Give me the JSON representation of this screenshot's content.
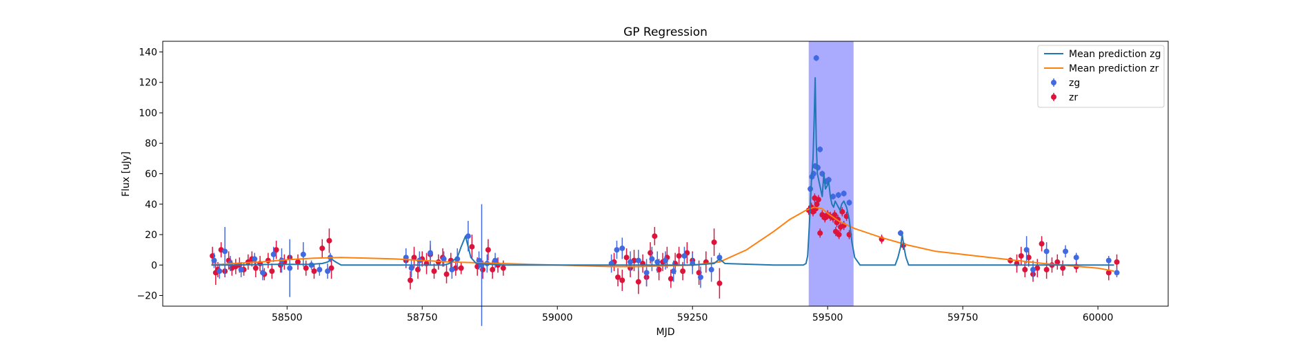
{
  "chart_data": {
    "type": "scatter",
    "title": "GP Regression",
    "xlabel": "MJD",
    "ylabel": "Flux [uJy]",
    "xlim": [
      58270,
      60130
    ],
    "ylim": [
      -27,
      147
    ],
    "xticks": [
      58500,
      58750,
      59000,
      59250,
      59500,
      59750,
      60000
    ],
    "yticks": [
      -20,
      0,
      20,
      40,
      60,
      80,
      100,
      120,
      140
    ],
    "grid": false,
    "legend_position": "top-right",
    "highlight_region": {
      "x0": 59465,
      "x1": 59548,
      "color": "#aaaaff"
    },
    "colors": {
      "zg_line": "#1f77b4",
      "zr_line": "#ff7f0e",
      "zg_points": "#4169e1",
      "zr_points": "#dc143c",
      "band": "#aaaaff"
    },
    "legend": [
      "Mean prediction zg",
      "Mean prediction zr",
      "zg",
      "zr"
    ],
    "series": [
      {
        "name": "Mean prediction zg",
        "kind": "line",
        "x": [
          58360,
          58400,
          58480,
          58500,
          58540,
          58565,
          58575,
          58582,
          58590,
          58600,
          58650,
          58700,
          58750,
          58790,
          58800,
          58815,
          58822,
          58830,
          58835,
          58840,
          58850,
          58900,
          59000,
          59100,
          59250,
          59290,
          59300,
          59310,
          59400,
          59450,
          59455,
          59460,
          59463,
          59466,
          59468,
          59470,
          59473,
          59475,
          59477,
          59479,
          59481,
          59484,
          59487,
          59490,
          59493,
          59496,
          59499,
          59502,
          59505,
          59508,
          59511,
          59514,
          59517,
          59520,
          59523,
          59526,
          59530,
          59535,
          59540,
          59545,
          59550,
          59560,
          59600,
          59625,
          59630,
          59635,
          59638,
          59641,
          59645,
          59650,
          59700,
          59800,
          59900,
          60000,
          60030
        ],
        "y": [
          0,
          0,
          0.5,
          0.5,
          0.5,
          1,
          2,
          4,
          2,
          0,
          0,
          0,
          0,
          0,
          1,
          5,
          12,
          19,
          12,
          5,
          1,
          0,
          0,
          0,
          0,
          1,
          4,
          1,
          0,
          0,
          0,
          1,
          6,
          25,
          40,
          55,
          70,
          95,
          123,
          80,
          60,
          55,
          50,
          45,
          60,
          50,
          52,
          55,
          45,
          40,
          38,
          42,
          40,
          38,
          36,
          40,
          42,
          38,
          30,
          15,
          5,
          0,
          0,
          0,
          5,
          12,
          20,
          12,
          5,
          0,
          0,
          0,
          0,
          0,
          0
        ]
      },
      {
        "name": "Mean prediction zr",
        "kind": "line",
        "x": [
          58360,
          58400,
          58450,
          58500,
          58550,
          58600,
          58650,
          58700,
          58750,
          58800,
          58850,
          58900,
          58950,
          59000,
          59050,
          59100,
          59150,
          59200,
          59250,
          59300,
          59350,
          59400,
          59430,
          59460,
          59475,
          59490,
          59500,
          59520,
          59550,
          59600,
          59650,
          59700,
          59750,
          59800,
          59850,
          59900,
          59950,
          60000,
          60030
        ],
        "y": [
          0,
          1,
          2,
          3.5,
          4.5,
          5,
          4.5,
          4,
          3,
          2,
          1.5,
          1,
          0.5,
          0,
          -0.5,
          -1,
          -1,
          -0.5,
          0,
          2,
          10,
          22,
          30,
          36,
          38,
          37,
          34,
          29,
          24,
          18,
          13,
          9,
          7,
          5,
          3,
          1,
          -0.5,
          -2,
          -4
        ]
      },
      {
        "name": "zg",
        "kind": "points",
        "x": [
          58365,
          58375,
          58385,
          58395,
          58415,
          58440,
          58455,
          58475,
          58490,
          58505,
          58530,
          58545,
          58560,
          58575,
          58580,
          58720,
          58730,
          58745,
          58765,
          58790,
          58805,
          58815,
          58835,
          58855,
          58860,
          58870,
          58885,
          59100,
          59110,
          59120,
          59135,
          59150,
          59165,
          59175,
          59185,
          59200,
          59215,
          59235,
          59250,
          59265,
          59285,
          59300,
          59468,
          59471,
          59474,
          59477,
          59479,
          59482,
          59486,
          59490,
          59497,
          59502,
          59510,
          59520,
          59530,
          59540,
          59635,
          59868,
          59880,
          59905,
          59940,
          59960,
          60020,
          60035
        ],
        "y": [
          3,
          -4,
          9,
          1,
          -3,
          4,
          -5,
          7,
          3,
          -2,
          7,
          0,
          -3,
          -4,
          5,
          5,
          -2,
          3,
          8,
          4,
          -3,
          4,
          19,
          3,
          0,
          1,
          3,
          1,
          10,
          11,
          2,
          3,
          -5,
          4,
          2,
          3,
          -4,
          6,
          1,
          -8,
          -3,
          5,
          50,
          58,
          60,
          65,
          136,
          64,
          76,
          60,
          55,
          56,
          45,
          46,
          47,
          41,
          21,
          10,
          -3,
          9,
          9,
          5,
          3,
          -5
        ],
        "err": [
          5,
          5,
          16,
          5,
          5,
          4,
          5,
          5,
          8,
          19,
          8,
          3,
          4,
          5,
          3,
          6,
          6,
          6,
          8,
          5,
          6,
          7,
          10,
          6,
          40,
          6,
          5,
          6,
          6,
          7,
          7,
          7,
          9,
          8,
          7,
          6,
          7,
          6,
          7,
          7,
          8,
          3,
          2,
          2,
          2,
          2,
          2,
          2,
          2,
          2,
          2,
          2,
          2,
          2,
          2,
          2,
          2,
          9,
          6,
          6,
          4,
          3,
          3,
          3
        ]
      },
      {
        "name": "zr",
        "kind": "points",
        "x": [
          58362,
          58368,
          58372,
          58378,
          58385,
          58392,
          58398,
          58405,
          58412,
          58420,
          58428,
          58435,
          58442,
          58450,
          58458,
          58465,
          58472,
          58480,
          58488,
          58495,
          58505,
          58520,
          58535,
          58550,
          58565,
          58578,
          58582,
          58720,
          58728,
          58735,
          58742,
          58750,
          58758,
          58765,
          58772,
          58780,
          58788,
          58795,
          58803,
          58812,
          58822,
          58842,
          58852,
          58862,
          58872,
          58880,
          58890,
          58900,
          59105,
          59112,
          59120,
          59128,
          59135,
          59142,
          59150,
          59158,
          59165,
          59172,
          59180,
          59188,
          59195,
          59203,
          59210,
          59218,
          59225,
          59232,
          59240,
          59250,
          59262,
          59275,
          59290,
          59300,
          59465,
          59470,
          59473,
          59476,
          59478,
          59480,
          59483,
          59486,
          59490,
          59495,
          59500,
          59505,
          59510,
          59513,
          59515,
          59517,
          59519,
          59521,
          59524,
          59527,
          59530,
          59535,
          59540,
          59600,
          59640,
          59838,
          59850,
          59858,
          59865,
          59872,
          59880,
          59888,
          59896,
          59905,
          59915,
          59925,
          59935,
          59960,
          60020,
          60035
        ],
        "y": [
          6,
          -5,
          -3,
          10,
          -4,
          3,
          -2,
          -1,
          0,
          -3,
          2,
          4,
          -2,
          1,
          -6,
          3,
          -4,
          10,
          0,
          2,
          5,
          2,
          -2,
          -4,
          11,
          16,
          -2,
          3,
          -10,
          5,
          -3,
          4,
          1,
          7,
          -4,
          2,
          5,
          -6,
          3,
          -2,
          -2,
          12,
          -1,
          -3,
          10,
          -3,
          0,
          -2,
          2,
          -8,
          -10,
          5,
          -2,
          3,
          -11,
          1,
          -8,
          8,
          19,
          -3,
          2,
          5,
          -9,
          1,
          6,
          -4,
          8,
          3,
          -5,
          2,
          15,
          -12,
          36,
          38,
          35,
          44,
          37,
          40,
          43,
          21,
          33,
          31,
          33,
          32,
          31,
          33,
          22,
          28,
          30,
          20,
          25,
          35,
          26,
          32,
          20,
          17,
          13,
          3,
          1,
          6,
          -3,
          5,
          -6,
          -2,
          14,
          -3,
          0,
          2,
          -2,
          -1,
          -5,
          2
        ],
        "err": [
          6,
          8,
          5,
          5,
          4,
          6,
          5,
          5,
          5,
          4,
          5,
          5,
          6,
          5,
          4,
          5,
          5,
          6,
          5,
          5,
          4,
          5,
          5,
          5,
          6,
          8,
          7,
          5,
          6,
          7,
          6,
          5,
          7,
          6,
          5,
          5,
          6,
          6,
          5,
          5,
          4,
          8,
          6,
          6,
          7,
          6,
          5,
          5,
          6,
          6,
          7,
          6,
          6,
          7,
          8,
          6,
          6,
          7,
          6,
          7,
          6,
          7,
          6,
          7,
          6,
          6,
          7,
          6,
          8,
          7,
          9,
          10,
          3,
          3,
          3,
          3,
          3,
          3,
          3,
          3,
          3,
          3,
          3,
          3,
          3,
          3,
          3,
          3,
          3,
          3,
          3,
          3,
          3,
          3,
          3,
          3,
          3,
          2,
          6,
          6,
          5,
          6,
          5,
          6,
          5,
          6,
          5,
          5,
          5,
          4,
          5,
          5
        ]
      }
    ]
  }
}
